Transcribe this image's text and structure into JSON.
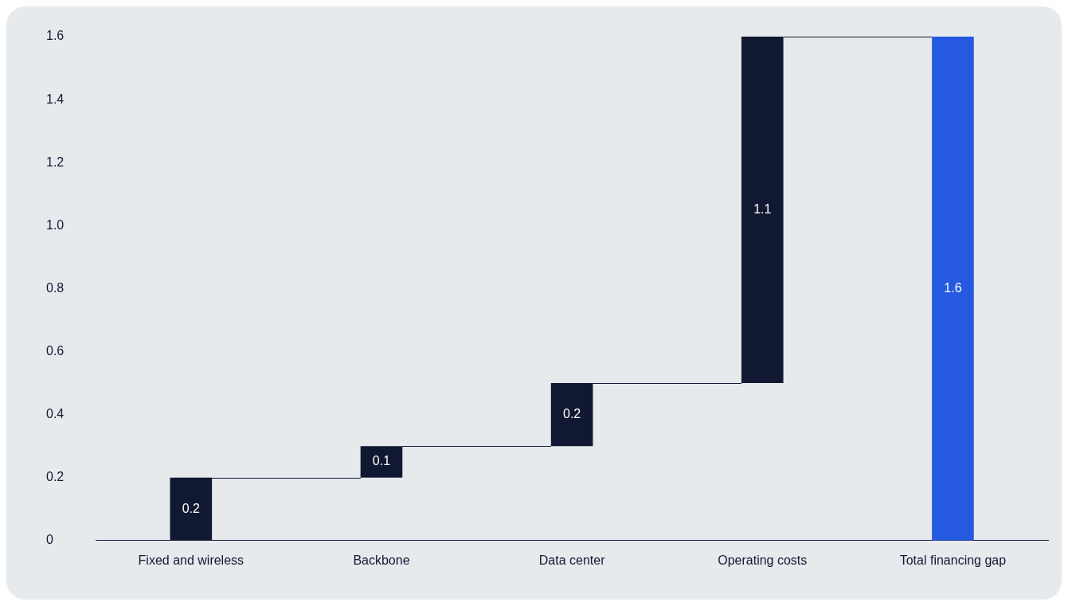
{
  "chart_data": {
    "type": "bar",
    "categories": [
      "Fixed and wireless",
      "Backbone",
      "Data center",
      "Operating costs",
      "Total financing gap"
    ],
    "values": [
      0.2,
      0.1,
      0.2,
      1.1,
      1.6
    ],
    "base": [
      0,
      0.2,
      0.3,
      0.5,
      0
    ],
    "colors": [
      "#111831",
      "#111831",
      "#111831",
      "#111831",
      "#2459e0"
    ],
    "ylim": [
      0,
      1.6
    ],
    "yticks": [
      0,
      0.2,
      0.4,
      0.6,
      0.8,
      {
        "value": 1,
        "label": "1.0"
      },
      1.2,
      1.4,
      1.6
    ],
    "data_labels": true,
    "grid": false,
    "legend": false
  }
}
